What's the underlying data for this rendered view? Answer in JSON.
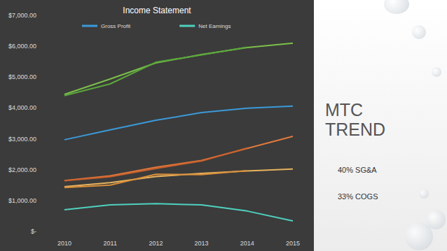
{
  "chart_data": {
    "type": "line",
    "title": "Income Statement",
    "categories": [
      "2010",
      "2011",
      "2012",
      "2013",
      "2014",
      "2015"
    ],
    "series": [
      {
        "color": "#7cbf4a",
        "values": [
          4440,
          4940,
          5460,
          5730,
          5960,
          6100
        ]
      },
      {
        "color": "#5aa83a",
        "values": [
          4400,
          4780,
          5480,
          5720,
          5970,
          null
        ]
      },
      {
        "name": "Gross Profit",
        "color": "#3b9ad9",
        "values": [
          2970,
          3290,
          3600,
          3850,
          3990,
          4060
        ]
      },
      {
        "color": "#e0793e",
        "values": [
          1650,
          1800,
          2080,
          2300,
          2690,
          3080
        ]
      },
      {
        "color": "#c9602c",
        "values": [
          1640,
          1770,
          2040,
          2280,
          2700,
          null
        ]
      },
      {
        "color": "#e7b35e",
        "values": [
          1450,
          1580,
          1780,
          1880,
          1960,
          2020
        ]
      },
      {
        "color": "#d98f3a",
        "values": [
          1420,
          1500,
          1850,
          1840,
          1970,
          null
        ]
      },
      {
        "name": "Net Earnings",
        "color": "#4fd1bf",
        "values": [
          700,
          860,
          900,
          860,
          660,
          340
        ]
      }
    ],
    "ylim": [
      0,
      7000
    ],
    "yticks": [
      {
        "value": 0,
        "label": "$-"
      },
      {
        "value": 1000,
        "label": "$1,000.00"
      },
      {
        "value": 2000,
        "label": "$2,000.00"
      },
      {
        "value": 3000,
        "label": "$3,000.00"
      },
      {
        "value": 4000,
        "label": "$4,000.00"
      },
      {
        "value": 5000,
        "label": "$5,000.00"
      },
      {
        "value": 6000,
        "label": "$6,000.00"
      },
      {
        "value": 7000,
        "label": "$7,000.00"
      }
    ],
    "grid": false,
    "legend": "top",
    "annotations": [
      "MTC TREND",
      "40% SG&A",
      "33% COGS"
    ]
  }
}
